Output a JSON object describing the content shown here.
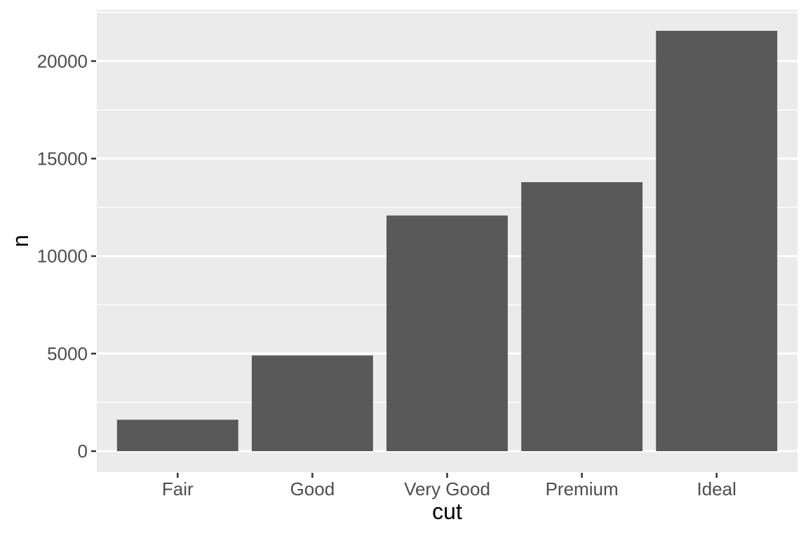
{
  "figure": {
    "background_color": "#FFFFFF",
    "panel_background_color": "#EBEBEB",
    "gridline_color": "#FFFFFF",
    "bar_fill_color": "#595959",
    "axis_text_color": "#4D4D4D",
    "axis_title_color": "#000000",
    "tick_mark_color": "#333333"
  },
  "chart_data": {
    "type": "bar",
    "title": "",
    "xlabel": "cut",
    "ylabel": "n",
    "categories": [
      "Fair",
      "Good",
      "Very Good",
      "Premium",
      "Ideal"
    ],
    "values": [
      1610,
      4906,
      12082,
      13791,
      21551
    ],
    "ylim": [
      0,
      22629
    ],
    "y_major_ticks": [
      0,
      5000,
      10000,
      15000,
      20000
    ],
    "y_tick_labels": [
      "0",
      "5000",
      "10000",
      "15000",
      "20000"
    ],
    "y_minor_ticks": [
      2500,
      7500,
      12500,
      17500,
      22500
    ],
    "grid": "major-and-minor",
    "legend_position": "none",
    "style": "ggplot2-theme-grey",
    "bar_relative_width": 0.9,
    "y_expansion_mult": 0.05
  }
}
